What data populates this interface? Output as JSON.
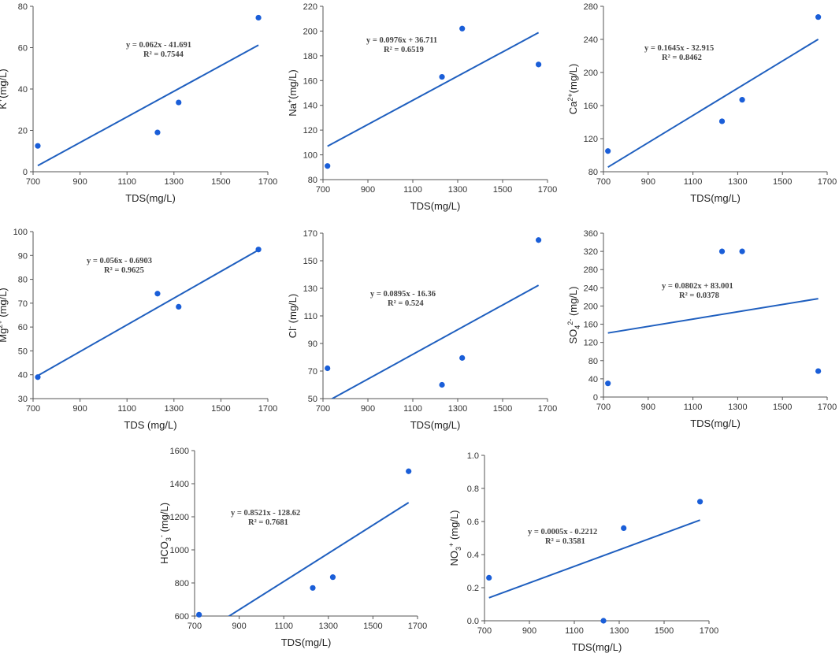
{
  "chart_data": [
    {
      "type": "scatter",
      "x": [
        720,
        1230,
        1320,
        1660
      ],
      "y": [
        12.5,
        19,
        33.5,
        74.5
      ],
      "xlabel": "TDS(mg/L)",
      "ylabel": {
        "main": "K",
        "sup": "+",
        "sub": "",
        "sub_sup": "",
        "unit": "(mg/L)"
      },
      "xlim": [
        700,
        1700
      ],
      "xticks": [
        700,
        900,
        1100,
        1300,
        1500,
        1700
      ],
      "ylim": [
        0,
        80
      ],
      "yticks": [
        0,
        20,
        40,
        60,
        80
      ],
      "fit": {
        "slope": 0.062,
        "intercept": -41.691,
        "x_range": [
          720,
          1660
        ]
      },
      "equation": "y = 0.062x - 41.691",
      "r2": "R² = 0.7544"
    },
    {
      "type": "scatter",
      "x": [
        720,
        1230,
        1320,
        1660
      ],
      "y": [
        91,
        163,
        202,
        173
      ],
      "xlabel": "TDS(mg/L)",
      "ylabel": {
        "main": "Na",
        "sup": "+",
        "sub": "",
        "sub_sup": "",
        "unit": "(mg/L)"
      },
      "xlim": [
        700,
        1700
      ],
      "xticks": [
        700,
        900,
        1100,
        1300,
        1500,
        1700
      ],
      "ylim": [
        80,
        220
      ],
      "yticks": [
        80,
        100,
        120,
        140,
        160,
        180,
        200,
        220
      ],
      "fit": {
        "slope": 0.0976,
        "intercept": 36.711,
        "x_range": [
          720,
          1660
        ]
      },
      "equation": "y = 0.0976x + 36.711",
      "r2": "R² = 0.6519"
    },
    {
      "type": "scatter",
      "x": [
        720,
        1230,
        1320,
        1660
      ],
      "y": [
        105,
        141,
        167,
        267
      ],
      "xlabel": "TDS(mg/L)",
      "ylabel": {
        "main": "Ca",
        "sup": "2+",
        "sub": "",
        "sub_sup": "",
        "unit": "(mg/L)"
      },
      "xlim": [
        700,
        1700
      ],
      "xticks": [
        700,
        900,
        1100,
        1300,
        1500,
        1700
      ],
      "ylim": [
        80,
        280
      ],
      "yticks": [
        80,
        120,
        160,
        200,
        240,
        280
      ],
      "fit": {
        "slope": 0.1645,
        "intercept": -32.915,
        "x_range": [
          720,
          1660
        ]
      },
      "equation": "y = 0.1645x - 32.915",
      "r2": "R² = 0.8462"
    },
    {
      "type": "scatter",
      "x": [
        720,
        1230,
        1320,
        1660
      ],
      "y": [
        39,
        74,
        68.5,
        92.5
      ],
      "xlabel": "TDS (mg/L)",
      "ylabel": {
        "main": "Mg",
        "sup": "2+",
        "sub": "",
        "sub_sup": "",
        "unit": " (mg/L)"
      },
      "xlim": [
        700,
        1700
      ],
      "xticks": [
        700,
        900,
        1100,
        1300,
        1500,
        1700
      ],
      "ylim": [
        30,
        100
      ],
      "yticks": [
        30,
        40,
        50,
        60,
        70,
        80,
        90,
        100
      ],
      "fit": {
        "slope": 0.056,
        "intercept": -0.6903,
        "x_range": [
          720,
          1660
        ]
      },
      "equation": "y = 0.056x - 0.6903",
      "r2": "R² = 0.9625"
    },
    {
      "type": "scatter",
      "x": [
        720,
        1230,
        1320,
        1660
      ],
      "y": [
        72,
        60,
        79.5,
        165
      ],
      "xlabel": "TDS(mg/L)",
      "ylabel": {
        "main": "Cl",
        "sup": "-",
        "sub": "",
        "sub_sup": "",
        "unit": " (mg/L)"
      },
      "xlim": [
        700,
        1700
      ],
      "xticks": [
        700,
        900,
        1100,
        1300,
        1500,
        1700
      ],
      "ylim": [
        50,
        170
      ],
      "yticks": [
        50,
        70,
        90,
        110,
        130,
        150,
        170
      ],
      "fit": {
        "slope": 0.0895,
        "intercept": -16.36,
        "x_range": [
          720,
          1660
        ]
      },
      "equation": "y = 0.0895x - 16.36",
      "r2": "R² = 0.524"
    },
    {
      "type": "scatter",
      "x": [
        720,
        1230,
        1320,
        1660
      ],
      "y": [
        30,
        320,
        320,
        57
      ],
      "xlabel": "TDS(mg/L)",
      "ylabel": {
        "main": "SO",
        "sup": "",
        "sub": "4",
        "sub_sup": "2-",
        "unit": " (mg/L)"
      },
      "xlim": [
        700,
        1700
      ],
      "xticks": [
        700,
        900,
        1100,
        1300,
        1500,
        1700
      ],
      "ylim": [
        0,
        360
      ],
      "yticks": [
        0,
        40,
        80,
        120,
        160,
        200,
        240,
        280,
        320,
        360
      ],
      "fit": {
        "slope": 0.0802,
        "intercept": 83.001,
        "x_range": [
          720,
          1660
        ]
      },
      "equation": "y = 0.0802x + 83.001",
      "r2": "R² = 0.0378"
    },
    {
      "type": "scatter",
      "x": [
        720,
        1230,
        1320,
        1660
      ],
      "y": [
        608,
        770,
        835,
        1475
      ],
      "xlabel": "TDS(mg/L)",
      "ylabel": {
        "main": "HCO",
        "sup": "",
        "sub": "3",
        "sub_sup": "-",
        "unit": " (mg/L)"
      },
      "xlim": [
        700,
        1700
      ],
      "xticks": [
        700,
        900,
        1100,
        1300,
        1500,
        1700
      ],
      "ylim": [
        600,
        1600
      ],
      "yticks": [
        600,
        800,
        1000,
        1200,
        1400,
        1600
      ],
      "fit": {
        "slope": 0.8521,
        "intercept": -128.62,
        "x_range": [
          720,
          1660
        ]
      },
      "equation": "y = 0.8521x - 128.62",
      "r2": "R² = 0.7681"
    },
    {
      "type": "scatter",
      "x": [
        720,
        1230,
        1320,
        1660
      ],
      "y": [
        0.26,
        0.0,
        0.56,
        0.72
      ],
      "xlabel": "TDS(mg/L)",
      "ylabel": {
        "main": "NO",
        "sup": "",
        "sub": "3",
        "sub_sup": "+",
        "unit": " (mg/L)"
      },
      "xlim": [
        700,
        1700
      ],
      "xticks": [
        700,
        900,
        1100,
        1300,
        1500,
        1700
      ],
      "ylim": [
        0.0,
        1.0
      ],
      "yticks": [
        "0.0",
        "0.2",
        "0.4",
        "0.6",
        "0.8",
        "1.0"
      ],
      "fit": {
        "slope": 0.0005,
        "intercept": -0.2212,
        "x_range": [
          720,
          1660
        ]
      },
      "equation": "y = 0.0005x - 0.2212",
      "r2": "R² = 0.3581"
    }
  ]
}
